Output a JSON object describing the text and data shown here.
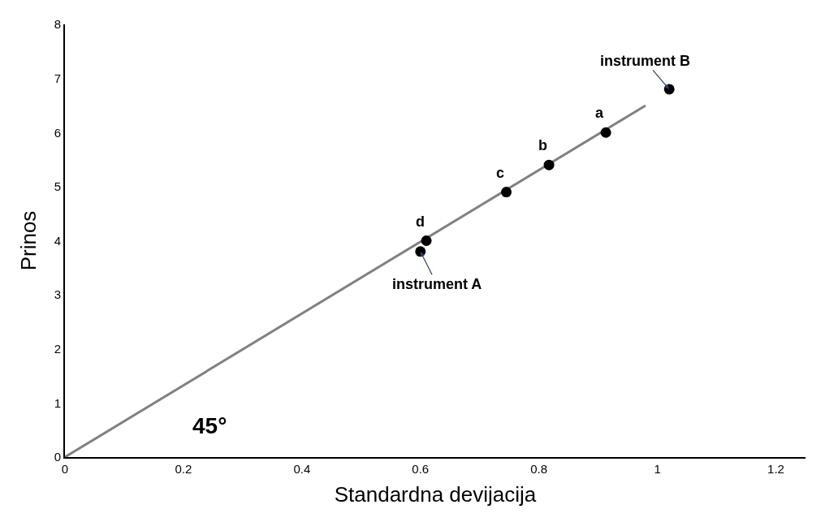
{
  "chart_data": {
    "type": "scatter",
    "xlabel": "Standardna devijacija",
    "ylabel": "Prinos",
    "xlim": [
      0,
      1.25
    ],
    "ylim": [
      0,
      8
    ],
    "xticks": [
      0,
      0.2,
      0.4,
      0.6,
      0.8,
      1,
      1.2
    ],
    "yticks": [
      0,
      1,
      2,
      3,
      4,
      5,
      6,
      7,
      8
    ],
    "series": [
      {
        "type": "line",
        "x": [
          0,
          0.98
        ],
        "values": [
          0,
          6.5
        ],
        "color": "#808080",
        "line_style": "solid",
        "marker": "none"
      },
      {
        "x": [
          0.61,
          0.6,
          0.745,
          0.817,
          0.913,
          1.02
        ],
        "values": [
          4.0,
          3.8,
          4.9,
          5.4,
          6.0,
          6.8
        ],
        "color": "#000000",
        "marker": "circle"
      }
    ],
    "annotations": [
      {
        "text": "d",
        "x": 0.61,
        "y": 4.0
      },
      {
        "text": "instrument A",
        "x": 0.6,
        "y": 3.8
      },
      {
        "text": "c",
        "x": 0.745,
        "y": 4.9
      },
      {
        "text": "b",
        "x": 0.817,
        "y": 5.4
      },
      {
        "text": "a",
        "x": 0.913,
        "y": 6.0
      },
      {
        "text": "instrument B",
        "x": 1.02,
        "y": 6.8
      },
      "45°"
    ]
  }
}
